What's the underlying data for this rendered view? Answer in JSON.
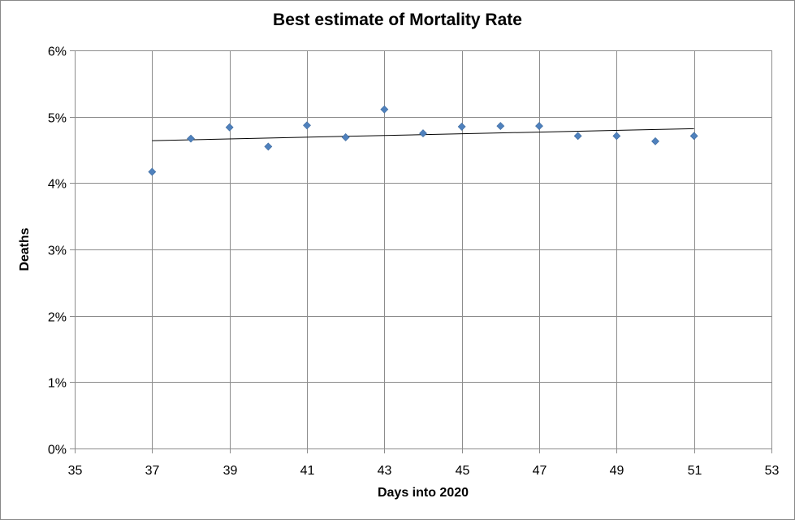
{
  "chart_data": {
    "type": "scatter",
    "title": "Best estimate of Mortality Rate",
    "xlabel": "Days into 2020",
    "ylabel": "Deaths",
    "xlim": [
      35,
      53
    ],
    "ylim": [
      0,
      0.06
    ],
    "x_ticks": [
      35,
      37,
      39,
      41,
      43,
      45,
      47,
      49,
      51,
      53
    ],
    "x_tick_labels": [
      "35",
      "37",
      "39",
      "41",
      "43",
      "45",
      "47",
      "49",
      "51",
      "53"
    ],
    "y_ticks": [
      0,
      0.01,
      0.02,
      0.03,
      0.04,
      0.05,
      0.06
    ],
    "y_tick_labels": [
      "0%",
      "1%",
      "2%",
      "3%",
      "4%",
      "5%",
      "6%"
    ],
    "grid": true,
    "legend": "none",
    "series": [
      {
        "name": "Mortality Rate",
        "marker": "diamond",
        "color": "#4f81bd",
        "x": [
          37,
          38,
          39,
          40,
          41,
          42,
          43,
          44,
          45,
          46,
          47,
          48,
          49,
          50,
          51
        ],
        "y": [
          0.0417,
          0.0467,
          0.0484,
          0.0455,
          0.0487,
          0.0469,
          0.0511,
          0.0475,
          0.0485,
          0.0486,
          0.0486,
          0.0471,
          0.0471,
          0.0463,
          0.0471
        ]
      }
    ],
    "trendline": {
      "type": "linear",
      "color": "#000000",
      "x": [
        37,
        51
      ],
      "y": [
        0.0464,
        0.0482
      ]
    }
  }
}
